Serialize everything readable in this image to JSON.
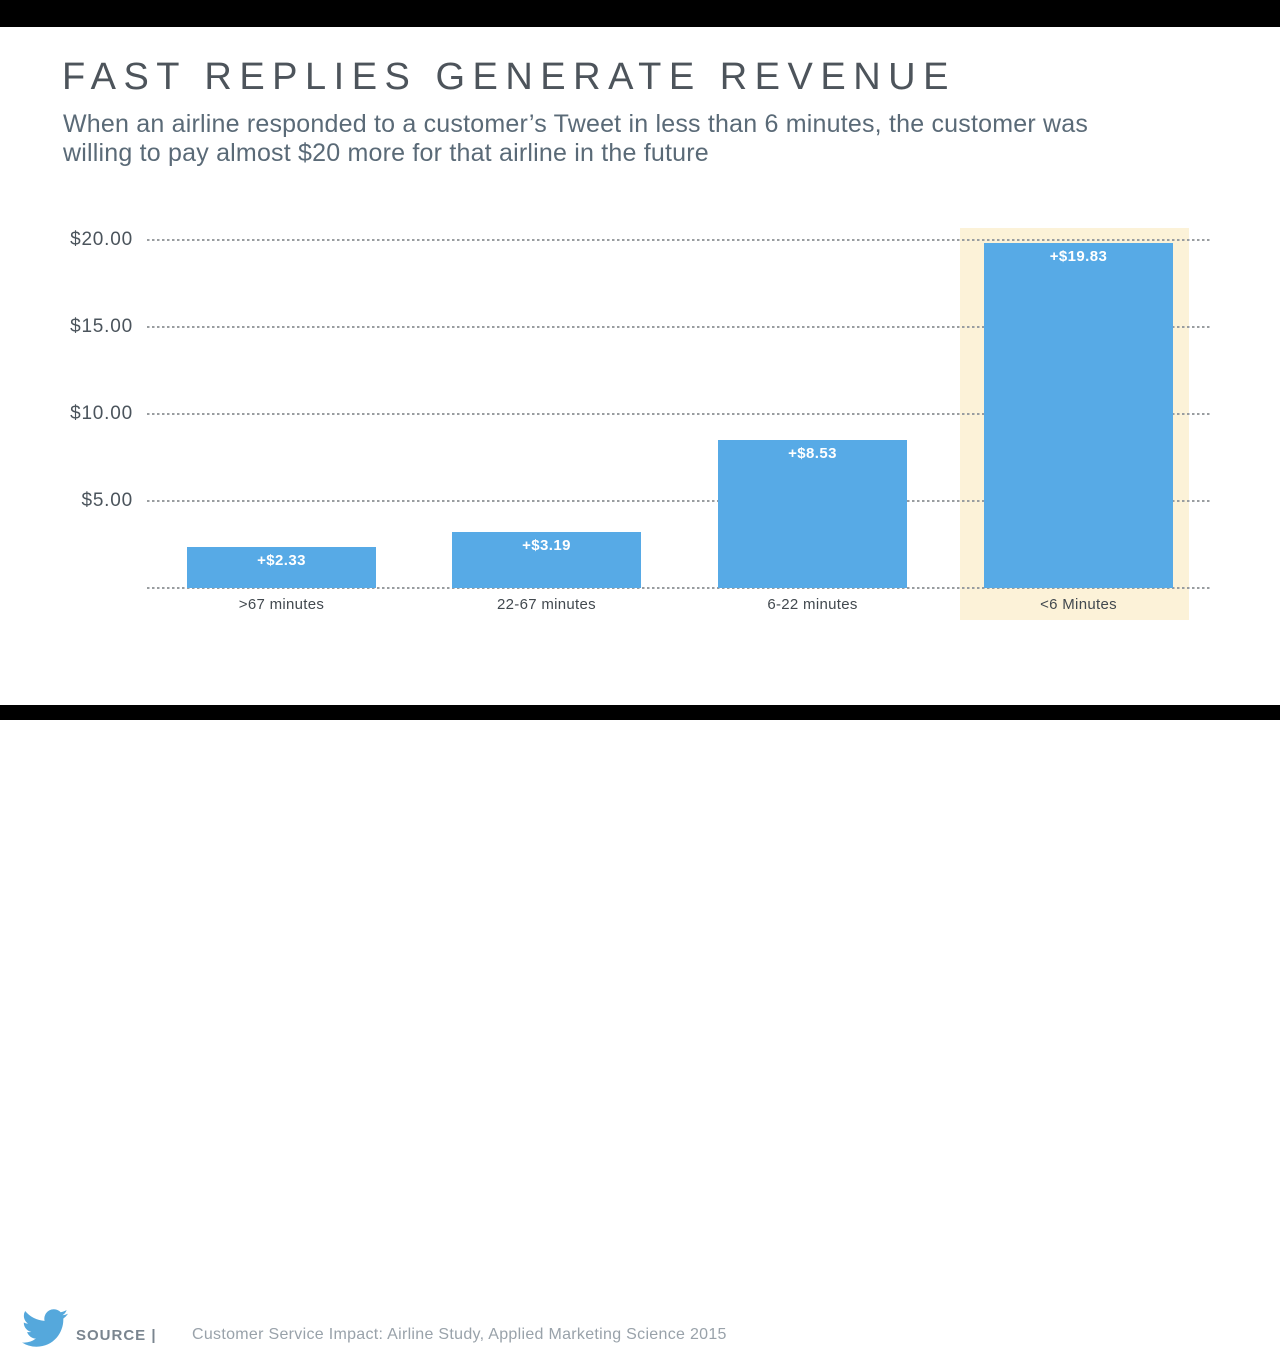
{
  "title": "FAST REPLIES GENERATE REVENUE",
  "subtitle_line1": "When an airline responded to a customer’s Tweet in less than 6 minutes, the customer was",
  "subtitle_line2": "willing to pay almost $20 more for that airline in the future",
  "footer": {
    "logo_icon": "twitter-bird-icon",
    "source_label": "SOURCE |",
    "source_text": "Customer Service Impact: Airline Study, Applied Marketing Science 2015"
  },
  "colors": {
    "bar": "#57aae6",
    "highlight_band": "#fcf2d8",
    "title_text": "#4d545b",
    "subtitle_text": "#5a6a77",
    "tick_text": "#4b545c",
    "category_text": "#42494f",
    "value_text": "#ffffff",
    "grid": "#999da0",
    "source_label_text": "#7a858f",
    "source_text_color": "#99a2aa",
    "logo_blue": "#55a8dc",
    "letterbox": "#000000"
  },
  "chart_data": {
    "type": "bar",
    "title": "FAST REPLIES GENERATE REVENUE",
    "categories": [
      ">67 minutes",
      "22-67 minutes",
      "6-22 minutes",
      "<6 Minutes"
    ],
    "values": [
      2.33,
      3.19,
      8.53,
      19.83
    ],
    "bar_labels": [
      "+$2.33",
      "+$3.19",
      "+$8.53",
      "+$19.83"
    ],
    "y_ticks": [
      {
        "value": 5,
        "label": "$5.00"
      },
      {
        "value": 10,
        "label": "$10.00"
      },
      {
        "value": 15,
        "label": "$15.00"
      },
      {
        "value": 20,
        "label": "$20.00"
      }
    ],
    "ylim": [
      0,
      20.6
    ],
    "xlabel": "",
    "ylabel": "",
    "grid": "horizontal-dotted",
    "legend": "none",
    "highlighted_category": "<6 Minutes",
    "highlighted_index": 3
  }
}
